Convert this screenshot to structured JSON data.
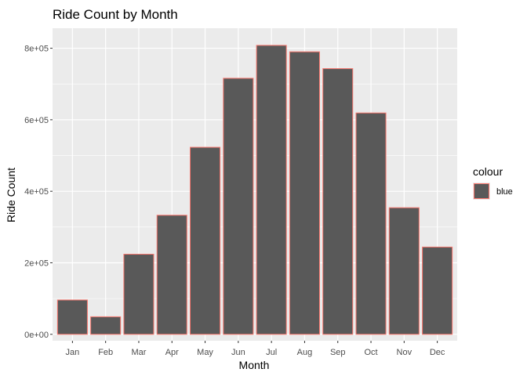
{
  "chart_data": {
    "type": "bar",
    "title": "Ride Count by Month",
    "xlabel": "Month",
    "ylabel": "Ride Count",
    "categories": [
      "Jan",
      "Feb",
      "Mar",
      "Apr",
      "May",
      "Jun",
      "Jul",
      "Aug",
      "Sep",
      "Oct",
      "Nov",
      "Dec"
    ],
    "values": [
      96000,
      49000,
      224000,
      333000,
      523000,
      716000,
      808000,
      790000,
      743000,
      619000,
      354000,
      244000
    ],
    "ylim": [
      -18000,
      856000
    ],
    "yticks": [
      0,
      200000,
      400000,
      600000,
      800000
    ],
    "ytick_labels": [
      "0e+00",
      "2e+05",
      "4e+05",
      "6e+05",
      "8e+05"
    ],
    "grid": true,
    "legend": {
      "title": "colour",
      "entries": [
        "blue"
      ],
      "placement": "right"
    },
    "colors": {
      "bar_fill": "#595959",
      "bar_outline": "#f8766d",
      "panel_background": "#ebebeb",
      "grid": "#ffffff"
    }
  }
}
